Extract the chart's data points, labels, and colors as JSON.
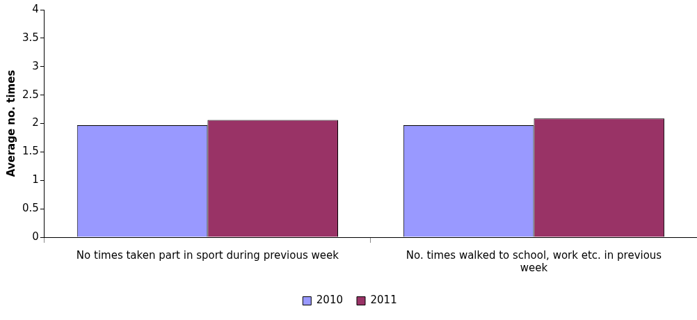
{
  "chart_data": {
    "type": "bar",
    "ylabel": "Average no. times",
    "categories": [
      "No times taken part in sport during previous week",
      "No. times walked to school, work etc. in previous week"
    ],
    "series": [
      {
        "name": "2010",
        "color": "#9999ff",
        "values": [
          1.97,
          1.97
        ]
      },
      {
        "name": "2011",
        "color": "#993366",
        "values": [
          2.06,
          2.09
        ]
      }
    ],
    "ylim": [
      0,
      4
    ],
    "yticks": [
      0,
      0.5,
      1,
      1.5,
      2,
      2.5,
      3,
      3.5,
      4
    ],
    "grid": false,
    "legend": "bottom"
  }
}
